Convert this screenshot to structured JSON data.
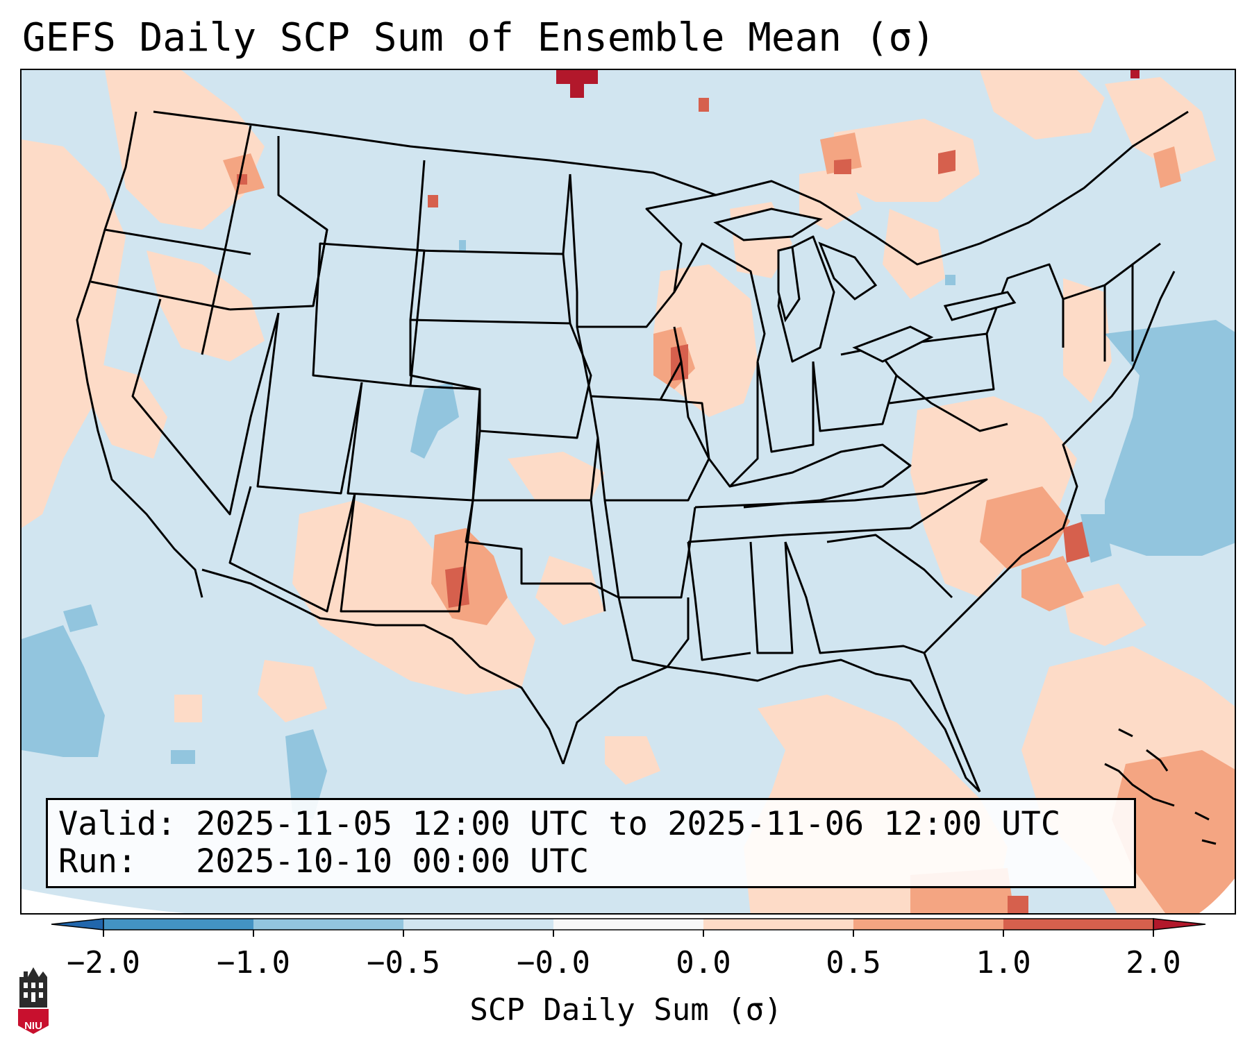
{
  "title": "GEFS Daily SCP Sum of Ensemble Mean (σ)",
  "info_box": {
    "valid_label": "Valid:",
    "valid_value": "2025-11-05 12:00 UTC to 2025-11-06 12:00 UTC",
    "run_label": "Run:",
    "run_value": "2025-10-10 00:00 UTC"
  },
  "colorbar": {
    "label": "SCP Daily Sum (σ)",
    "ticks": [
      "−2.0",
      "−1.0",
      "−0.5",
      "−0.0",
      "0.0",
      "0.5",
      "1.0",
      "2.0"
    ],
    "colors": [
      "#4393c3",
      "#92c5de",
      "#d1e5f0",
      "#f7f7f7",
      "#fddbc7",
      "#f4a582",
      "#d6604d"
    ],
    "extend_under_color": "#2166ac",
    "extend_over_color": "#b2182b"
  },
  "map": {
    "background_color": "#d1e5f0",
    "fill_colors": {
      "slightly_positive": "#fddbc7",
      "positive": "#f4a582",
      "high": "#d6604d",
      "very_high": "#b2182b",
      "negative": "#92c5de"
    }
  },
  "logo": {
    "text": "NIU",
    "icon": "niu-logo-icon"
  }
}
